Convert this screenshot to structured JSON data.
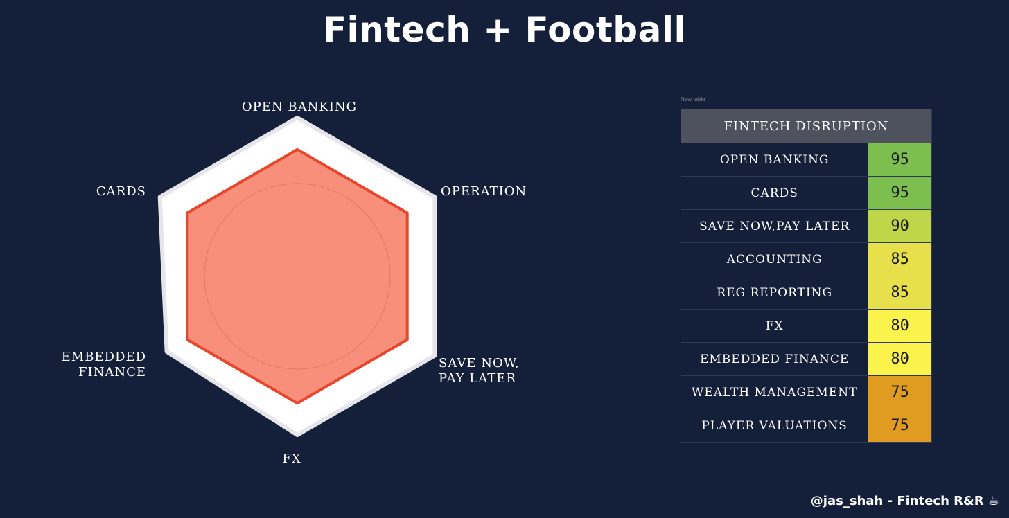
{
  "title": "Fintech + Football",
  "table": {
    "caption": "New table",
    "header": "FINTECH DISRUPTION",
    "rows": [
      {
        "label": "OPEN BANKING",
        "value": "95",
        "color": "#7cbf4f"
      },
      {
        "label": "CARDS",
        "value": "95",
        "color": "#7cbf4f"
      },
      {
        "label": "SAVE NOW,PAY LATER",
        "value": "90",
        "color": "#bfd64a"
      },
      {
        "label": "ACCOUNTING",
        "value": "85",
        "color": "#e8e04a"
      },
      {
        "label": "REG REPORTING",
        "value": "85",
        "color": "#e8e04a"
      },
      {
        "label": "FX",
        "value": "80",
        "color": "#fbf34b"
      },
      {
        "label": "EMBEDDED FINANCE",
        "value": "80",
        "color": "#fbf34b"
      },
      {
        "label": "WEALTH MANAGEMENT",
        "value": "75",
        "color": "#e09c20"
      },
      {
        "label": "PLAYER VALUATIONS",
        "value": "75",
        "color": "#e09c20"
      }
    ]
  },
  "chart_data": {
    "type": "radar",
    "axes": [
      [
        "OPEN BANKING"
      ],
      [
        "OPERATIONS"
      ],
      [
        "SAVE NOW,",
        "PAY LATER"
      ],
      [
        "FX"
      ],
      [
        "EMBEDDED",
        "FINANCE"
      ],
      [
        "CARDS"
      ]
    ],
    "series": [
      {
        "values": [
          0.8,
          0.8,
          0.8,
          0.8,
          0.8,
          0.8
        ],
        "fill": "#f78f7b",
        "stroke": "#e8462a"
      }
    ],
    "background_shape": {
      "values": [
        1.0,
        1.0,
        1.0,
        1.0,
        0.95,
        1.0
      ],
      "fill": "#ffffff"
    }
  },
  "footer": "@jas_shah - Fintech R&R ☕"
}
